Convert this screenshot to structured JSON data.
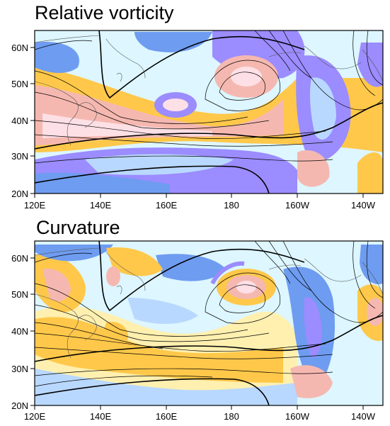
{
  "colors": {
    "strong_negative": "#9b8cff",
    "negative": "#6e9cf0",
    "weak_negative": "#b9d8ff",
    "near_zero_negative": "#ddf6ff",
    "weak_positive": "#fff0b0",
    "positive": "#ffc84a",
    "strong_positive": "#f5b8b0",
    "strongest_positive": "#fde0e6",
    "contour": "#000000",
    "coast": "#555555"
  },
  "panels": [
    {
      "title": "Relative vorticity",
      "x_ticks": [
        "120E",
        "140E",
        "160E",
        "180",
        "160W",
        "140W"
      ],
      "y_ticks": [
        "20N",
        "30N",
        "40N",
        "50N",
        "60N"
      ]
    },
    {
      "title": "Curvature",
      "x_ticks": [
        "120E",
        "140E",
        "160E",
        "180",
        "160W",
        "140W"
      ],
      "y_ticks": [
        "20N",
        "30N",
        "40N",
        "50N",
        "60N"
      ]
    }
  ]
}
